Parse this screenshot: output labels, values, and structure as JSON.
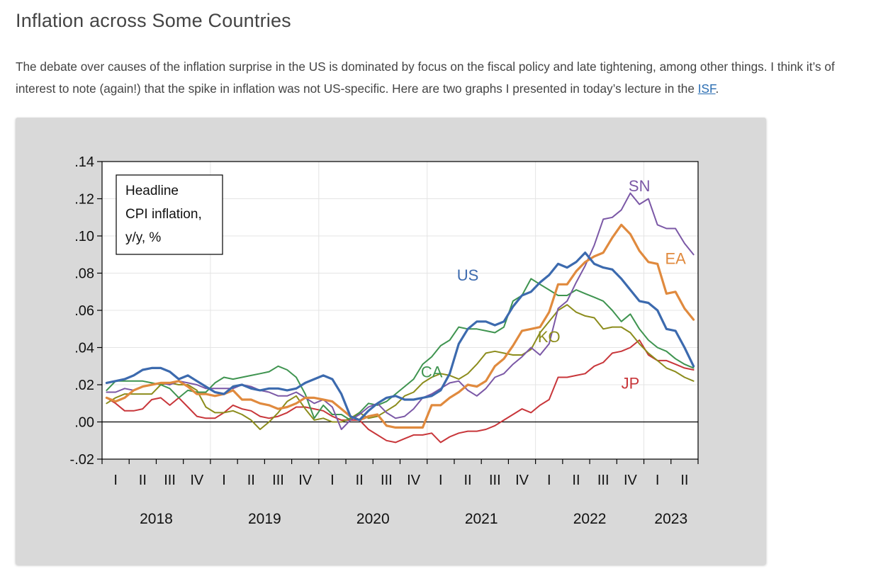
{
  "post": {
    "title": "Inflation across Some Countries",
    "body_text": "The debate over causes of the inflation surprise in the US is dominated by focus on the fiscal policy and late tightening, among other things. I think it’s of interest to note (again!) that the spike in inflation was not US-specific. Here are two graphs I presented in today’s lecture in the ",
    "link_text": "ISF",
    "body_end": "."
  },
  "chart_data": {
    "type": "line",
    "legend_box": [
      "Headline",
      "CPI inflation,",
      "y/y, %"
    ],
    "ylim": [
      -0.02,
      0.14
    ],
    "y_ticks": [
      {
        "v": 0.14,
        "label": ".14"
      },
      {
        "v": 0.12,
        "label": ".12"
      },
      {
        "v": 0.1,
        "label": ".10"
      },
      {
        "v": 0.08,
        "label": ".08"
      },
      {
        "v": 0.06,
        "label": ".06"
      },
      {
        "v": 0.04,
        "label": ".04"
      },
      {
        "v": 0.02,
        "label": ".02"
      },
      {
        "v": 0.0,
        "label": ".00"
      },
      {
        "v": -0.02,
        "label": "-.02"
      }
    ],
    "x_start": "2018-01",
    "x_end": "2023-06",
    "quarter_labels": [
      "I",
      "II",
      "III",
      "IV",
      "I",
      "II",
      "III",
      "IV",
      "I",
      "II",
      "III",
      "IV",
      "I",
      "II",
      "III",
      "IV",
      "I",
      "II",
      "III",
      "IV",
      "I",
      "II"
    ],
    "year_labels": [
      "2018",
      "2019",
      "2020",
      "2021",
      "2022",
      "2023"
    ],
    "colors": {
      "US": "#3c6aae",
      "EA": "#e08a3e",
      "SN": "#7b58a6",
      "CA": "#3f9450",
      "KO": "#8c8c1c",
      "JP": "#c8363a"
    },
    "series": [
      {
        "name": "US",
        "label_x": "2021-05",
        "label_y": 0.079,
        "width": 3.2,
        "values": [
          0.021,
          0.022,
          0.023,
          0.025,
          0.028,
          0.029,
          0.029,
          0.027,
          0.023,
          0.025,
          0.022,
          0.019,
          0.016,
          0.015,
          0.019,
          0.02,
          0.018,
          0.017,
          0.018,
          0.018,
          0.017,
          0.018,
          0.021,
          0.023,
          0.025,
          0.023,
          0.015,
          0.003,
          0.001,
          0.006,
          0.01,
          0.013,
          0.014,
          0.012,
          0.012,
          0.013,
          0.014,
          0.017,
          0.026,
          0.042,
          0.05,
          0.054,
          0.054,
          0.052,
          0.054,
          0.062,
          0.068,
          0.07,
          0.075,
          0.079,
          0.085,
          0.083,
          0.086,
          0.091,
          0.085,
          0.083,
          0.082,
          0.077,
          0.071,
          0.065,
          0.064,
          0.06,
          0.05,
          0.049,
          0.04,
          0.03
        ]
      },
      {
        "name": "EA",
        "label_x": "2023-04",
        "label_y": 0.088,
        "width": 3.2,
        "values": [
          0.013,
          0.011,
          0.013,
          0.017,
          0.019,
          0.02,
          0.021,
          0.021,
          0.022,
          0.019,
          0.015,
          0.015,
          0.014,
          0.015,
          0.017,
          0.012,
          0.012,
          0.01,
          0.009,
          0.007,
          0.008,
          0.01,
          0.013,
          0.013,
          0.012,
          0.011,
          0.007,
          0.003,
          0.001,
          0.003,
          0.004,
          -0.002,
          -0.003,
          -0.003,
          -0.003,
          -0.003,
          0.009,
          0.009,
          0.013,
          0.016,
          0.02,
          0.019,
          0.022,
          0.03,
          0.034,
          0.041,
          0.049,
          0.05,
          0.051,
          0.059,
          0.074,
          0.074,
          0.081,
          0.086,
          0.089,
          0.091,
          0.099,
          0.106,
          0.101,
          0.092,
          0.086,
          0.085,
          0.069,
          0.07,
          0.061,
          0.055
        ]
      },
      {
        "name": "SN",
        "label_x": "2022-12",
        "label_y": 0.127,
        "width": 2,
        "values": [
          0.016,
          0.016,
          0.018,
          0.017,
          0.019,
          0.02,
          0.021,
          0.02,
          0.022,
          0.021,
          0.02,
          0.018,
          0.018,
          0.018,
          0.018,
          0.02,
          0.019,
          0.017,
          0.016,
          0.014,
          0.014,
          0.016,
          0.013,
          0.01,
          0.012,
          0.008,
          -0.004,
          0.001,
          0.004,
          0.008,
          0.01,
          0.005,
          0.002,
          0.003,
          0.007,
          0.013,
          0.015,
          0.018,
          0.021,
          0.022,
          0.017,
          0.014,
          0.018,
          0.024,
          0.026,
          0.031,
          0.035,
          0.04,
          0.036,
          0.042,
          0.061,
          0.065,
          0.075,
          0.084,
          0.095,
          0.109,
          0.11,
          0.114,
          0.123,
          0.117,
          0.12,
          0.106,
          0.104,
          0.104,
          0.096,
          0.09
        ]
      },
      {
        "name": "CA",
        "label_x": "2021-01",
        "label_y": 0.027,
        "width": 2,
        "values": [
          0.017,
          0.022,
          0.022,
          0.022,
          0.022,
          0.021,
          0.02,
          0.018,
          0.013,
          0.017,
          0.016,
          0.016,
          0.021,
          0.024,
          0.023,
          0.024,
          0.025,
          0.026,
          0.027,
          0.03,
          0.028,
          0.024,
          0.015,
          0.002,
          0.009,
          0.004,
          0.004,
          0.001,
          0.005,
          0.01,
          0.009,
          0.011,
          0.015,
          0.019,
          0.023,
          0.031,
          0.035,
          0.041,
          0.044,
          0.051,
          0.05,
          0.05,
          0.049,
          0.048,
          0.051,
          0.065,
          0.068,
          0.077,
          0.074,
          0.071,
          0.068,
          0.068,
          0.071,
          0.069,
          0.067,
          0.065,
          0.06,
          0.054,
          0.058,
          0.05,
          0.044,
          0.04,
          0.038,
          0.034,
          0.031,
          0.029
        ]
      },
      {
        "name": "KO",
        "label_x": "2022-02",
        "label_y": 0.046,
        "width": 2,
        "values": [
          0.01,
          0.013,
          0.015,
          0.015,
          0.015,
          0.015,
          0.02,
          0.021,
          0.02,
          0.02,
          0.017,
          0.008,
          0.005,
          0.005,
          0.006,
          0.004,
          0.001,
          -0.004,
          0.0,
          0.005,
          0.011,
          0.014,
          0.007,
          0.001,
          0.002,
          0.0,
          0.0,
          0.002,
          0.005,
          0.002,
          0.003,
          0.006,
          0.009,
          0.014,
          0.016,
          0.021,
          0.024,
          0.026,
          0.025,
          0.023,
          0.026,
          0.031,
          0.037,
          0.038,
          0.037,
          0.036,
          0.036,
          0.039,
          0.048,
          0.054,
          0.06,
          0.063,
          0.059,
          0.057,
          0.056,
          0.05,
          0.051,
          0.051,
          0.048,
          0.042,
          0.037,
          0.033,
          0.029,
          0.027,
          0.024,
          0.022
        ]
      },
      {
        "name": "JP",
        "label_x": "2022-11",
        "label_y": 0.021,
        "width": 2,
        "values": [
          0.013,
          0.01,
          0.006,
          0.006,
          0.007,
          0.012,
          0.013,
          0.009,
          0.013,
          0.008,
          0.003,
          0.002,
          0.002,
          0.005,
          0.009,
          0.007,
          0.006,
          0.003,
          0.002,
          0.003,
          0.005,
          0.008,
          0.008,
          0.007,
          0.006,
          0.003,
          0.001,
          0.001,
          0.001,
          -0.004,
          -0.007,
          -0.01,
          -0.011,
          -0.009,
          -0.007,
          -0.007,
          -0.006,
          -0.011,
          -0.008,
          -0.006,
          -0.005,
          -0.005,
          -0.004,
          -0.002,
          0.001,
          0.004,
          0.007,
          0.005,
          0.009,
          0.012,
          0.024,
          0.024,
          0.025,
          0.026,
          0.03,
          0.032,
          0.037,
          0.038,
          0.04,
          0.044,
          0.036,
          0.033,
          0.033,
          0.031,
          0.029,
          0.028
        ]
      }
    ]
  }
}
